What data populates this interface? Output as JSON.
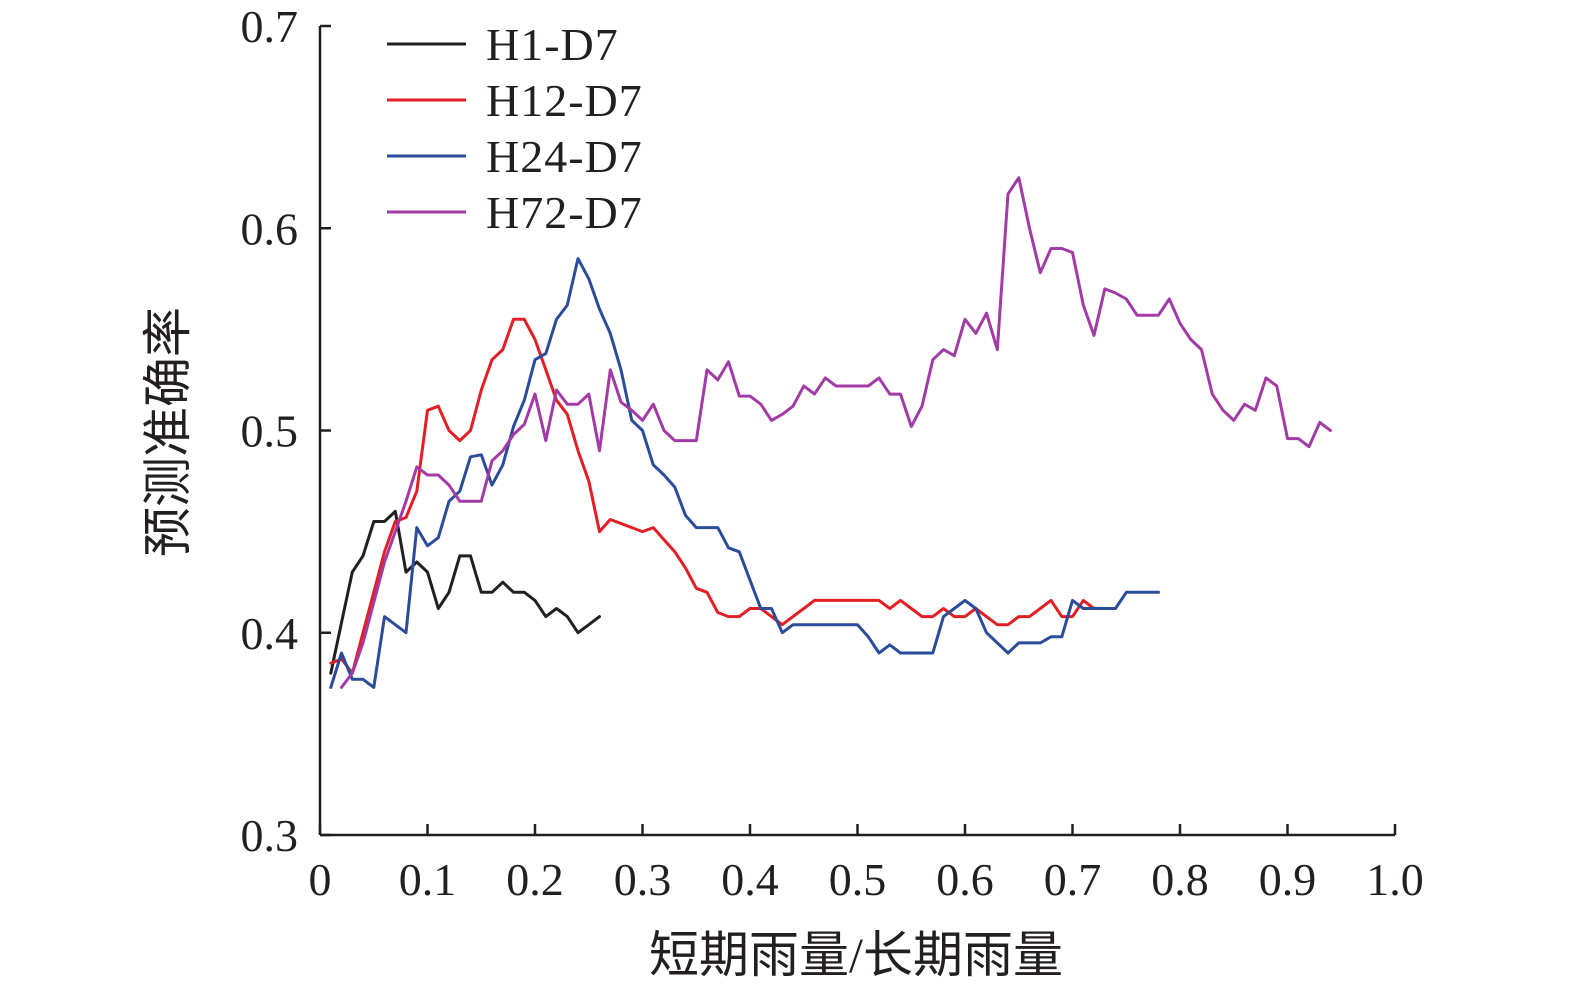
{
  "chart_data": {
    "type": "line",
    "xlabel": "短期雨量/长期雨量",
    "ylabel": "预测准确率",
    "xlim": [
      0,
      1.0
    ],
    "ylim": [
      0.3,
      0.7
    ],
    "x_ticks": [
      0,
      0.1,
      0.2,
      0.3,
      0.4,
      0.5,
      0.6,
      0.7,
      0.8,
      0.9,
      1.0
    ],
    "x_tick_labels": [
      "0",
      "0.1",
      "0.2",
      "0.3",
      "0.4",
      "0.5",
      "0.6",
      "0.7",
      "0.8",
      "0.9",
      "1.0"
    ],
    "y_ticks": [
      0.3,
      0.4,
      0.5,
      0.6,
      0.7
    ],
    "y_tick_labels": [
      "0.3",
      "0.4",
      "0.5",
      "0.6",
      "0.7"
    ],
    "grid": false,
    "legend_position": "top-left",
    "series": [
      {
        "name": "H1-D7",
        "color": "#231f20",
        "points": [
          [
            0.01,
            0.38
          ],
          [
            0.02,
            0.405
          ],
          [
            0.03,
            0.43
          ],
          [
            0.04,
            0.438
          ],
          [
            0.05,
            0.455
          ],
          [
            0.06,
            0.455
          ],
          [
            0.07,
            0.46
          ],
          [
            0.08,
            0.43
          ],
          [
            0.09,
            0.435
          ],
          [
            0.1,
            0.43
          ],
          [
            0.11,
            0.412
          ],
          [
            0.12,
            0.42
          ],
          [
            0.13,
            0.438
          ],
          [
            0.14,
            0.438
          ],
          [
            0.15,
            0.42
          ],
          [
            0.16,
            0.42
          ],
          [
            0.17,
            0.425
          ],
          [
            0.18,
            0.42
          ],
          [
            0.19,
            0.42
          ],
          [
            0.2,
            0.416
          ],
          [
            0.21,
            0.408
          ],
          [
            0.22,
            0.412
          ],
          [
            0.23,
            0.408
          ],
          [
            0.24,
            0.4
          ],
          [
            0.25,
            0.404
          ],
          [
            0.26,
            0.408
          ]
        ]
      },
      {
        "name": "H12-D7",
        "color": "#e31e24",
        "points": [
          [
            0.01,
            0.385
          ],
          [
            0.02,
            0.387
          ],
          [
            0.03,
            0.38
          ],
          [
            0.04,
            0.4
          ],
          [
            0.05,
            0.42
          ],
          [
            0.06,
            0.44
          ],
          [
            0.07,
            0.455
          ],
          [
            0.08,
            0.457
          ],
          [
            0.09,
            0.47
          ],
          [
            0.1,
            0.51
          ],
          [
            0.11,
            0.512
          ],
          [
            0.12,
            0.5
          ],
          [
            0.13,
            0.495
          ],
          [
            0.14,
            0.5
          ],
          [
            0.15,
            0.52
          ],
          [
            0.16,
            0.535
          ],
          [
            0.17,
            0.54
          ],
          [
            0.18,
            0.555
          ],
          [
            0.19,
            0.555
          ],
          [
            0.2,
            0.545
          ],
          [
            0.21,
            0.53
          ],
          [
            0.22,
            0.515
          ],
          [
            0.23,
            0.508
          ],
          [
            0.24,
            0.49
          ],
          [
            0.25,
            0.475
          ],
          [
            0.26,
            0.45
          ],
          [
            0.27,
            0.456
          ],
          [
            0.28,
            0.454
          ],
          [
            0.29,
            0.452
          ],
          [
            0.3,
            0.45
          ],
          [
            0.31,
            0.452
          ],
          [
            0.32,
            0.446
          ],
          [
            0.33,
            0.44
          ],
          [
            0.34,
            0.432
          ],
          [
            0.35,
            0.422
          ],
          [
            0.36,
            0.42
          ],
          [
            0.37,
            0.41
          ],
          [
            0.38,
            0.408
          ],
          [
            0.39,
            0.408
          ],
          [
            0.4,
            0.412
          ],
          [
            0.41,
            0.412
          ],
          [
            0.42,
            0.408
          ],
          [
            0.43,
            0.404
          ],
          [
            0.44,
            0.408
          ],
          [
            0.45,
            0.412
          ],
          [
            0.46,
            0.416
          ],
          [
            0.47,
            0.416
          ],
          [
            0.48,
            0.416
          ],
          [
            0.49,
            0.416
          ],
          [
            0.5,
            0.416
          ],
          [
            0.51,
            0.416
          ],
          [
            0.52,
            0.416
          ],
          [
            0.53,
            0.412
          ],
          [
            0.54,
            0.416
          ],
          [
            0.55,
            0.412
          ],
          [
            0.56,
            0.408
          ],
          [
            0.57,
            0.408
          ],
          [
            0.58,
            0.412
          ],
          [
            0.59,
            0.408
          ],
          [
            0.6,
            0.408
          ],
          [
            0.61,
            0.412
          ],
          [
            0.62,
            0.408
          ],
          [
            0.63,
            0.404
          ],
          [
            0.64,
            0.404
          ],
          [
            0.65,
            0.408
          ],
          [
            0.66,
            0.408
          ],
          [
            0.67,
            0.412
          ],
          [
            0.68,
            0.416
          ],
          [
            0.69,
            0.408
          ],
          [
            0.7,
            0.408
          ],
          [
            0.71,
            0.416
          ],
          [
            0.72,
            0.412
          ]
        ]
      },
      {
        "name": "H24-D7",
        "color": "#2b4c9b",
        "points": [
          [
            0.01,
            0.373
          ],
          [
            0.02,
            0.39
          ],
          [
            0.03,
            0.377
          ],
          [
            0.04,
            0.377
          ],
          [
            0.05,
            0.373
          ],
          [
            0.06,
            0.408
          ],
          [
            0.07,
            0.404
          ],
          [
            0.08,
            0.4
          ],
          [
            0.09,
            0.452
          ],
          [
            0.1,
            0.443
          ],
          [
            0.11,
            0.447
          ],
          [
            0.12,
            0.465
          ],
          [
            0.13,
            0.47
          ],
          [
            0.14,
            0.487
          ],
          [
            0.15,
            0.488
          ],
          [
            0.16,
            0.473
          ],
          [
            0.17,
            0.483
          ],
          [
            0.18,
            0.502
          ],
          [
            0.19,
            0.515
          ],
          [
            0.2,
            0.535
          ],
          [
            0.21,
            0.538
          ],
          [
            0.22,
            0.555
          ],
          [
            0.23,
            0.562
          ],
          [
            0.24,
            0.585
          ],
          [
            0.25,
            0.575
          ],
          [
            0.26,
            0.56
          ],
          [
            0.27,
            0.548
          ],
          [
            0.28,
            0.53
          ],
          [
            0.29,
            0.505
          ],
          [
            0.3,
            0.5
          ],
          [
            0.31,
            0.483
          ],
          [
            0.32,
            0.478
          ],
          [
            0.33,
            0.472
          ],
          [
            0.34,
            0.458
          ],
          [
            0.35,
            0.452
          ],
          [
            0.36,
            0.452
          ],
          [
            0.37,
            0.452
          ],
          [
            0.38,
            0.442
          ],
          [
            0.39,
            0.44
          ],
          [
            0.4,
            0.426
          ],
          [
            0.41,
            0.412
          ],
          [
            0.42,
            0.412
          ],
          [
            0.43,
            0.4
          ],
          [
            0.44,
            0.404
          ],
          [
            0.45,
            0.404
          ],
          [
            0.46,
            0.404
          ],
          [
            0.47,
            0.404
          ],
          [
            0.48,
            0.404
          ],
          [
            0.49,
            0.404
          ],
          [
            0.5,
            0.404
          ],
          [
            0.51,
            0.398
          ],
          [
            0.52,
            0.39
          ],
          [
            0.53,
            0.394
          ],
          [
            0.54,
            0.39
          ],
          [
            0.55,
            0.39
          ],
          [
            0.56,
            0.39
          ],
          [
            0.57,
            0.39
          ],
          [
            0.58,
            0.408
          ],
          [
            0.59,
            0.412
          ],
          [
            0.6,
            0.416
          ],
          [
            0.61,
            0.412
          ],
          [
            0.62,
            0.4
          ],
          [
            0.63,
            0.395
          ],
          [
            0.64,
            0.39
          ],
          [
            0.65,
            0.395
          ],
          [
            0.66,
            0.395
          ],
          [
            0.67,
            0.395
          ],
          [
            0.68,
            0.398
          ],
          [
            0.69,
            0.398
          ],
          [
            0.7,
            0.416
          ],
          [
            0.71,
            0.412
          ],
          [
            0.72,
            0.412
          ],
          [
            0.73,
            0.412
          ],
          [
            0.74,
            0.412
          ],
          [
            0.75,
            0.42
          ],
          [
            0.76,
            0.42
          ],
          [
            0.77,
            0.42
          ],
          [
            0.78,
            0.42
          ]
        ]
      },
      {
        "name": "H72-D7",
        "color": "#a23ba6",
        "points": [
          [
            0.02,
            0.373
          ],
          [
            0.03,
            0.38
          ],
          [
            0.04,
            0.395
          ],
          [
            0.05,
            0.415
          ],
          [
            0.06,
            0.435
          ],
          [
            0.07,
            0.45
          ],
          [
            0.08,
            0.465
          ],
          [
            0.09,
            0.482
          ],
          [
            0.1,
            0.478
          ],
          [
            0.11,
            0.478
          ],
          [
            0.12,
            0.473
          ],
          [
            0.13,
            0.465
          ],
          [
            0.14,
            0.465
          ],
          [
            0.15,
            0.465
          ],
          [
            0.16,
            0.485
          ],
          [
            0.17,
            0.49
          ],
          [
            0.18,
            0.498
          ],
          [
            0.19,
            0.503
          ],
          [
            0.2,
            0.518
          ],
          [
            0.21,
            0.495
          ],
          [
            0.22,
            0.52
          ],
          [
            0.23,
            0.513
          ],
          [
            0.24,
            0.513
          ],
          [
            0.25,
            0.518
          ],
          [
            0.26,
            0.49
          ],
          [
            0.27,
            0.53
          ],
          [
            0.28,
            0.514
          ],
          [
            0.29,
            0.51
          ],
          [
            0.3,
            0.505
          ],
          [
            0.31,
            0.513
          ],
          [
            0.32,
            0.5
          ],
          [
            0.33,
            0.495
          ],
          [
            0.34,
            0.495
          ],
          [
            0.35,
            0.495
          ],
          [
            0.36,
            0.53
          ],
          [
            0.37,
            0.525
          ],
          [
            0.38,
            0.534
          ],
          [
            0.39,
            0.517
          ],
          [
            0.4,
            0.517
          ],
          [
            0.41,
            0.513
          ],
          [
            0.42,
            0.505
          ],
          [
            0.43,
            0.508
          ],
          [
            0.44,
            0.512
          ],
          [
            0.45,
            0.522
          ],
          [
            0.46,
            0.518
          ],
          [
            0.47,
            0.526
          ],
          [
            0.48,
            0.522
          ],
          [
            0.49,
            0.522
          ],
          [
            0.5,
            0.522
          ],
          [
            0.51,
            0.522
          ],
          [
            0.52,
            0.526
          ],
          [
            0.53,
            0.518
          ],
          [
            0.54,
            0.518
          ],
          [
            0.55,
            0.502
          ],
          [
            0.56,
            0.512
          ],
          [
            0.57,
            0.535
          ],
          [
            0.58,
            0.54
          ],
          [
            0.59,
            0.537
          ],
          [
            0.6,
            0.555
          ],
          [
            0.61,
            0.548
          ],
          [
            0.62,
            0.558
          ],
          [
            0.63,
            0.54
          ],
          [
            0.64,
            0.617
          ],
          [
            0.65,
            0.625
          ],
          [
            0.66,
            0.6
          ],
          [
            0.67,
            0.578
          ],
          [
            0.68,
            0.59
          ],
          [
            0.69,
            0.59
          ],
          [
            0.7,
            0.588
          ],
          [
            0.71,
            0.562
          ],
          [
            0.72,
            0.547
          ],
          [
            0.73,
            0.57
          ],
          [
            0.74,
            0.568
          ],
          [
            0.75,
            0.565
          ],
          [
            0.76,
            0.557
          ],
          [
            0.77,
            0.557
          ],
          [
            0.78,
            0.557
          ],
          [
            0.79,
            0.565
          ],
          [
            0.8,
            0.553
          ],
          [
            0.81,
            0.545
          ],
          [
            0.82,
            0.54
          ],
          [
            0.83,
            0.518
          ],
          [
            0.84,
            0.51
          ],
          [
            0.85,
            0.505
          ],
          [
            0.86,
            0.513
          ],
          [
            0.87,
            0.51
          ],
          [
            0.88,
            0.526
          ],
          [
            0.89,
            0.522
          ],
          [
            0.9,
            0.496
          ],
          [
            0.91,
            0.496
          ],
          [
            0.92,
            0.492
          ],
          [
            0.93,
            0.504
          ],
          [
            0.94,
            0.5
          ]
        ]
      }
    ]
  }
}
